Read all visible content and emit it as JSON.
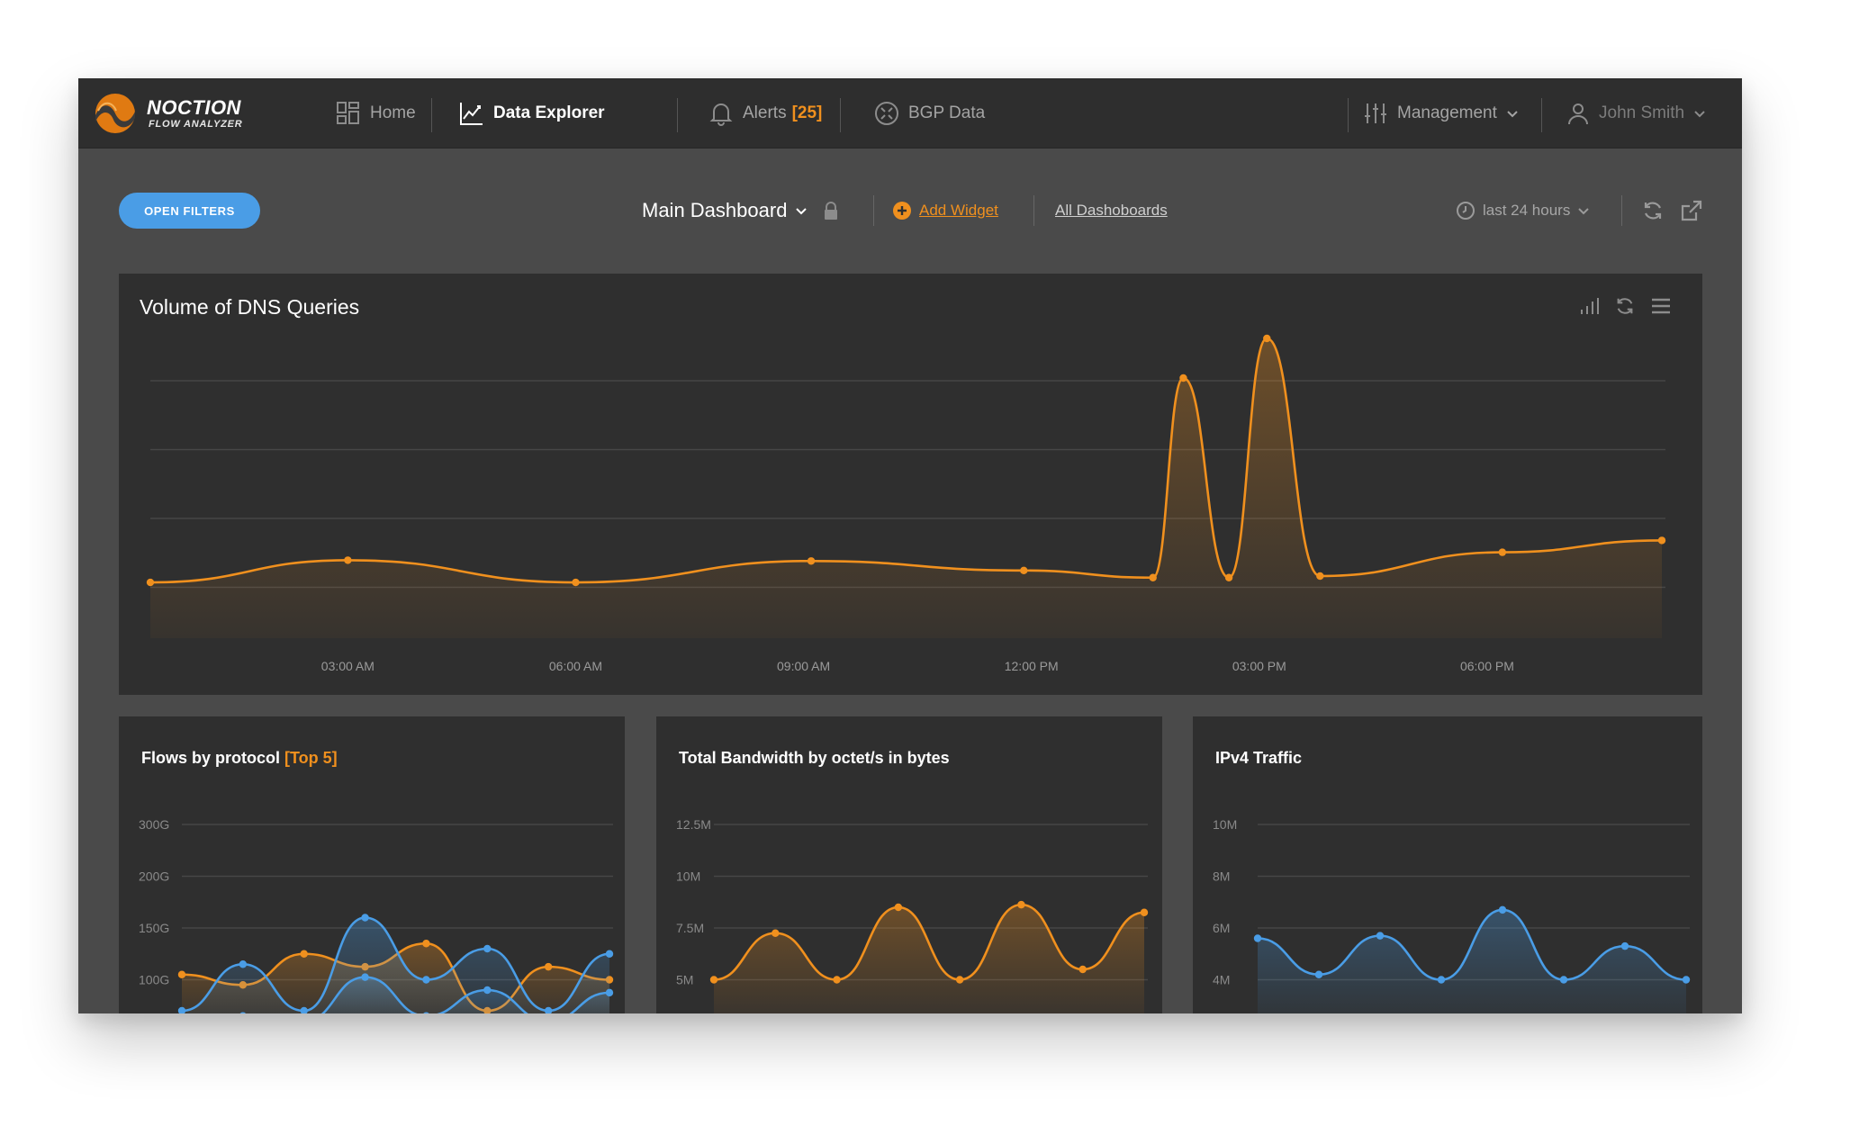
{
  "brand": {
    "name": "NOCTION",
    "subtitle": "FLOW ANALYZER"
  },
  "nav": {
    "home": "Home",
    "data_explorer": "Data Explorer",
    "alerts": "Alerts",
    "alerts_count": "[25]",
    "bgp": "BGP Data",
    "management": "Management",
    "user": "John Smith"
  },
  "toolbar": {
    "open_filters": "OPEN FILTERS",
    "dashboard": "Main Dashboard",
    "add_widget": "Add Widget",
    "all_dashboards": "All Dashoboards",
    "time_range": "last 24 hours"
  },
  "colors": {
    "orange": "#f0901e",
    "blue": "#4a9de6",
    "panel": "#2f2f2f",
    "background": "#4a4a4a"
  },
  "widgets": {
    "dns": {
      "title": "Volume of DNS Queries"
    },
    "flows": {
      "title": "Flows by protocol",
      "title_suffix": "[Top 5]"
    },
    "bandwidth": {
      "title": "Total Bandwidth by octet/s in bytes"
    },
    "ipv4": {
      "title": "IPv4 Traffic"
    }
  },
  "chart_data": [
    {
      "id": "dns",
      "type": "area",
      "title": "Volume of DNS Queries",
      "x_ticks": [
        "03:00 AM",
        "06:00 AM",
        "09:00 AM",
        "12:00 PM",
        "03:00 PM",
        "06:00 PM"
      ],
      "x_tick_hours": [
        3,
        6,
        9,
        12,
        15,
        18
      ],
      "xlim": [
        0.4,
        20.3
      ],
      "ylim": [
        0,
        4
      ],
      "grid": true,
      "series": [
        {
          "color": "#f0901e",
          "points": [
            [
              0.4,
              0.42
            ],
            [
              3.0,
              0.7
            ],
            [
              6.0,
              0.42
            ],
            [
              9.1,
              0.69
            ],
            [
              11.9,
              0.57
            ],
            [
              13.6,
              0.48
            ],
            [
              14.0,
              3.0
            ],
            [
              14.6,
              0.48
            ],
            [
              15.1,
              3.5
            ],
            [
              15.8,
              0.5
            ],
            [
              18.2,
              0.8
            ],
            [
              20.3,
              0.95
            ]
          ]
        }
      ]
    },
    {
      "id": "flows",
      "type": "area",
      "title": "Flows by protocol [Top 5]",
      "y_ticks": [
        "300G",
        "200G",
        "150G",
        "100G"
      ],
      "ylim": [
        0,
        4
      ],
      "grid": true,
      "series": [
        {
          "color": "#f0901e",
          "points": [
            [
              0,
              1.1
            ],
            [
              1,
              0.9
            ],
            [
              2,
              1.5
            ],
            [
              3,
              1.25
            ],
            [
              4,
              1.7
            ],
            [
              5,
              0.4
            ],
            [
              6,
              1.25
            ],
            [
              7,
              1.0
            ]
          ]
        },
        {
          "color": "#4a9de6",
          "points": [
            [
              0,
              0.4
            ],
            [
              1,
              1.3
            ],
            [
              2,
              0.4
            ],
            [
              3,
              2.2
            ],
            [
              4,
              1.0
            ],
            [
              5,
              1.6
            ],
            [
              6,
              0.4
            ],
            [
              7,
              1.5
            ]
          ]
        },
        {
          "color": "#4a9de6",
          "points": [
            [
              0,
              0.2
            ],
            [
              1,
              0.3
            ],
            [
              2,
              0.2
            ],
            [
              3,
              1.05
            ],
            [
              4,
              0.3
            ],
            [
              5,
              0.8
            ],
            [
              6,
              0.2
            ],
            [
              7,
              0.75
            ]
          ]
        }
      ]
    },
    {
      "id": "bandwidth",
      "type": "area",
      "title": "Total Bandwidth by octet/s in bytes",
      "y_ticks": [
        "12.5M",
        "10M",
        "7.5M",
        "5M"
      ],
      "ylim": [
        0,
        4
      ],
      "grid": true,
      "series": [
        {
          "color": "#f0901e",
          "points": [
            [
              0,
              1.0
            ],
            [
              1,
              1.9
            ],
            [
              2,
              1.0
            ],
            [
              3,
              2.4
            ],
            [
              4,
              1.0
            ],
            [
              5,
              2.45
            ],
            [
              6,
              1.2
            ],
            [
              7,
              2.3
            ]
          ]
        }
      ]
    },
    {
      "id": "ipv4",
      "type": "area",
      "title": "IPv4 Traffic",
      "y_ticks": [
        "10M",
        "8M",
        "6M",
        "4M"
      ],
      "ylim": [
        0,
        4
      ],
      "grid": true,
      "series": [
        {
          "color": "#4a9de6",
          "points": [
            [
              0,
              1.8
            ],
            [
              1,
              1.1
            ],
            [
              2,
              1.85
            ],
            [
              3,
              1.0
            ],
            [
              4,
              2.35
            ],
            [
              5,
              1.0
            ],
            [
              6,
              1.65
            ],
            [
              7,
              1.0
            ]
          ]
        }
      ]
    }
  ]
}
